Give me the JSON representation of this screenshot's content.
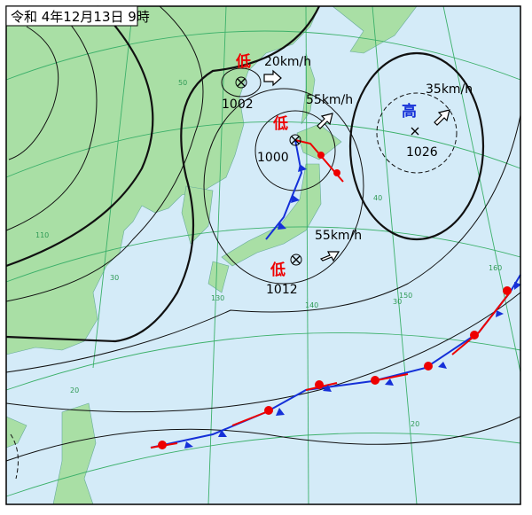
{
  "header": {
    "title": "令和 4年12月13日 9時"
  },
  "systems": [
    {
      "symbol": "低",
      "pressure": "1002",
      "speed": "20km/h"
    },
    {
      "symbol": "低",
      "pressure": "1000",
      "speed": "55km/h"
    },
    {
      "symbol": "低",
      "pressure": "1012",
      "speed": "55km/h"
    },
    {
      "symbol": "高",
      "pressure": "1026",
      "speed": "35km/h"
    }
  ],
  "grid_labels": [
    "50",
    "40",
    "30",
    "30",
    "20",
    "20",
    "110",
    "130",
    "140",
    "150",
    "160"
  ]
}
